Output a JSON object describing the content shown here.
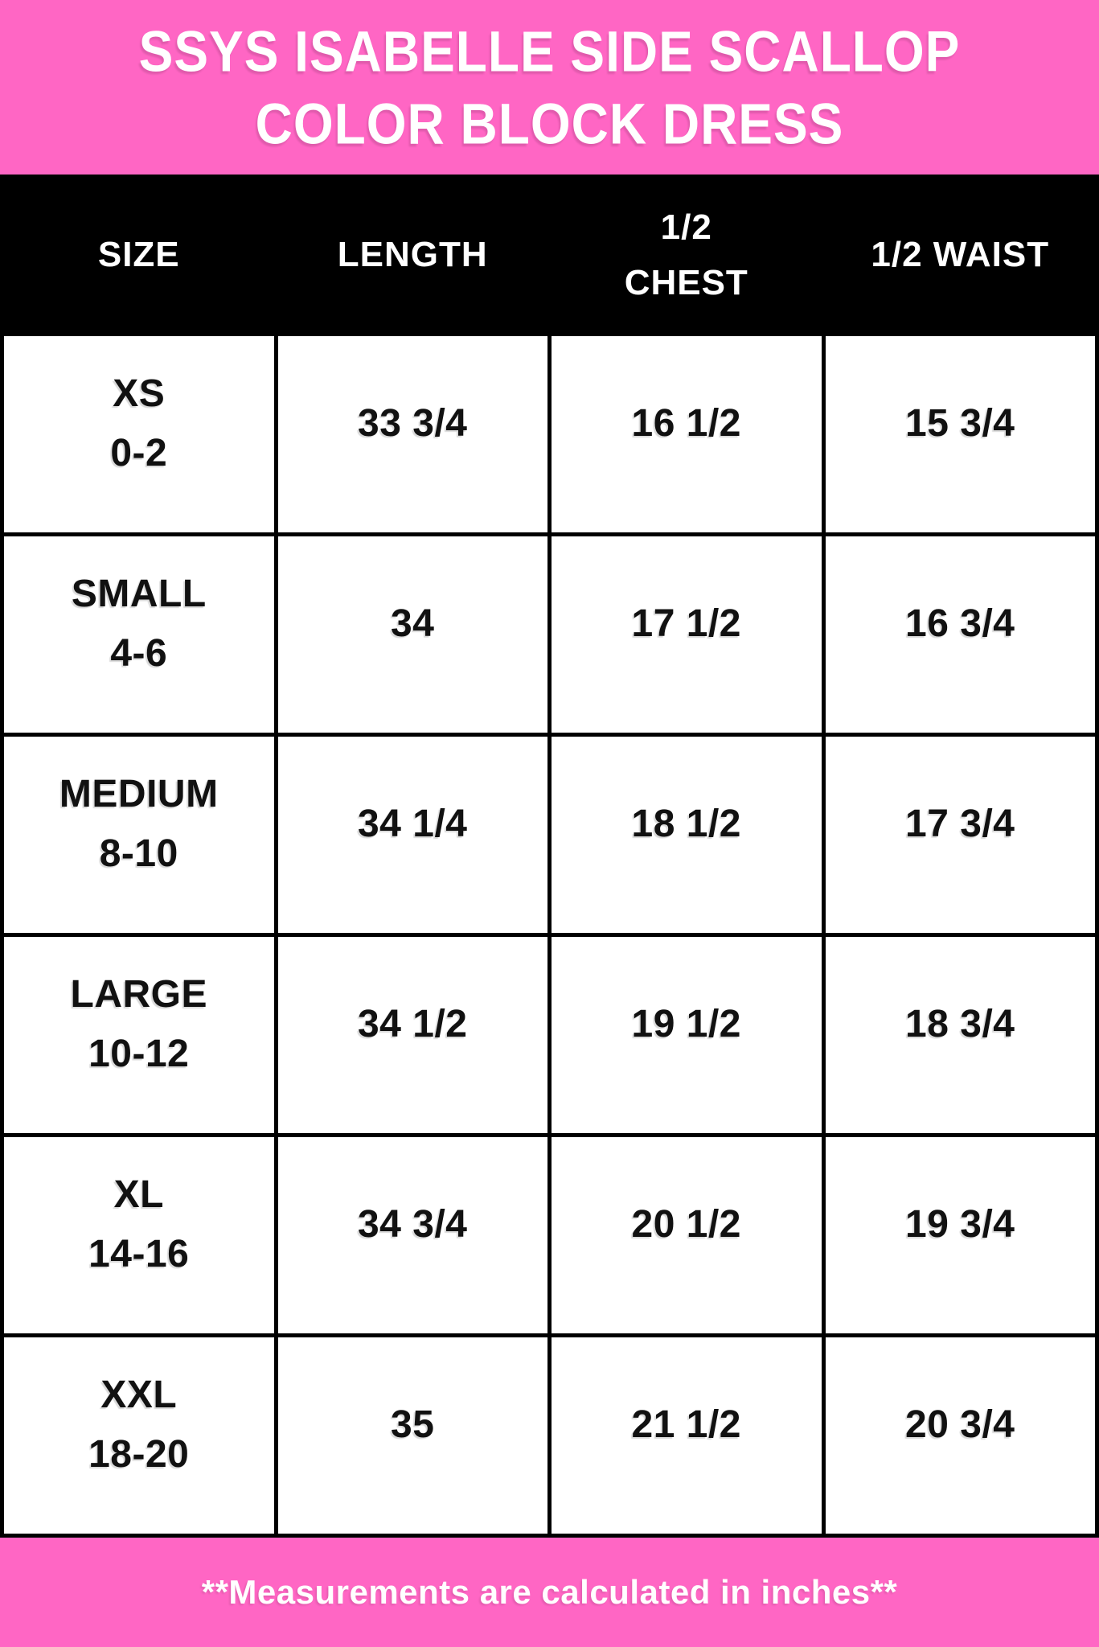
{
  "title": {
    "line1": "SSYS ISABELLE SIDE SCALLOP",
    "line2": "COLOR BLOCK DRESS"
  },
  "table": {
    "columns": [
      "SIZE",
      "LENGTH",
      "1/2\nCHEST",
      "1/2 WAIST"
    ],
    "rows": [
      {
        "size": "XS",
        "range": "0-2",
        "length": "33 3/4",
        "chest": "16 1/2",
        "waist": "15 3/4"
      },
      {
        "size": "SMALL",
        "range": "4-6",
        "length": "34",
        "chest": "17 1/2",
        "waist": "16 3/4"
      },
      {
        "size": "MEDIUM",
        "range": "8-10",
        "length": "34 1/4",
        "chest": "18 1/2",
        "waist": "17 3/4"
      },
      {
        "size": "LARGE",
        "range": "10-12",
        "length": "34 1/2",
        "chest": "19 1/2",
        "waist": "18 3/4"
      },
      {
        "size": "XL",
        "range": "14-16",
        "length": "34 3/4",
        "chest": "20 1/2",
        "waist": "19 3/4"
      },
      {
        "size": "XXL",
        "range": "18-20",
        "length": "35",
        "chest": "21 1/2",
        "waist": "20 3/4"
      }
    ]
  },
  "footer": {
    "note": "**Measurements are calculated in inches**"
  },
  "colors": {
    "pink": "#ff66c4",
    "black": "#000000",
    "white": "#ffffff"
  },
  "chart_data": {
    "type": "table",
    "title": "SSYS ISABELLE SIDE SCALLOP COLOR BLOCK DRESS",
    "columns": [
      "SIZE",
      "LENGTH",
      "1/2 CHEST",
      "1/2 WAIST"
    ],
    "rows": [
      [
        "XS 0-2",
        "33 3/4",
        "16 1/2",
        "15 3/4"
      ],
      [
        "SMALL 4-6",
        "34",
        "17 1/2",
        "16 3/4"
      ],
      [
        "MEDIUM 8-10",
        "34 1/4",
        "18 1/2",
        "17 3/4"
      ],
      [
        "LARGE 10-12",
        "34 1/2",
        "19 1/2",
        "18 3/4"
      ],
      [
        "XL 14-16",
        "34 3/4",
        "20 1/2",
        "19 3/4"
      ],
      [
        "XXL 18-20",
        "35",
        "21 1/2",
        "20 3/4"
      ]
    ],
    "note": "**Measurements are calculated in inches**"
  }
}
